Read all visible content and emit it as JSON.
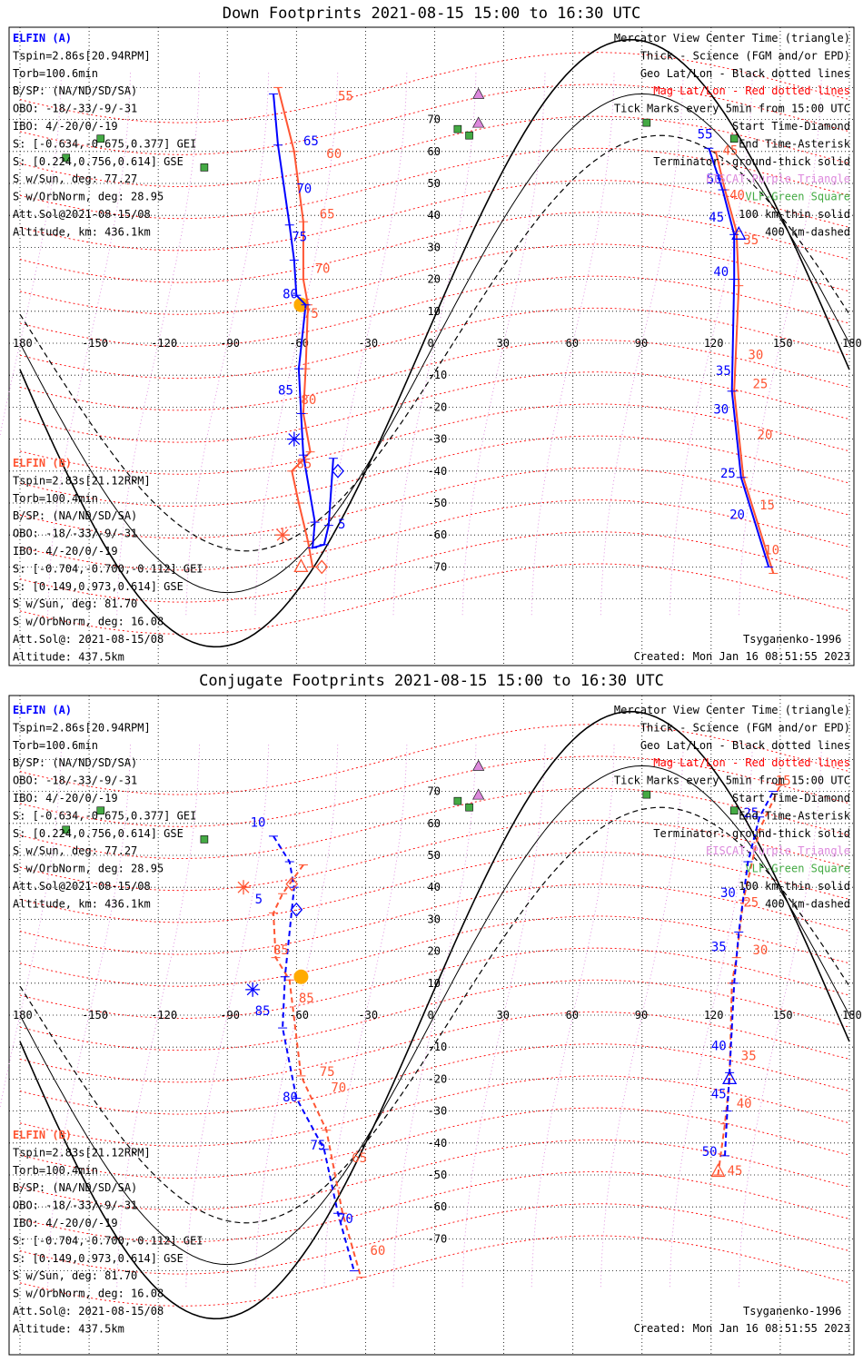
{
  "panels": [
    {
      "id": "down",
      "title": "Down Footprints 2021-08-15 15:00 to 16:30 UTC",
      "ela_mark": "+",
      "elb_mark": "+",
      "ela_track": [
        [
          -44,
          -36
        ],
        [
          -46,
          -57
        ],
        [
          -48,
          -63
        ],
        [
          -53,
          -64
        ],
        [
          -52,
          -56
        ],
        [
          -57,
          -35
        ],
        [
          -58,
          -22
        ],
        [
          -59,
          -8
        ],
        [
          -56,
          12
        ],
        [
          -60,
          15
        ],
        [
          -61,
          26
        ],
        [
          -63,
          37
        ],
        [
          -68,
          62
        ],
        [
          -70,
          78
        ]
      ],
      "elb_track": [
        [
          -53,
          -70
        ],
        [
          -55,
          -62
        ],
        [
          -59,
          -50
        ],
        [
          -62,
          -40
        ],
        [
          -54,
          -34
        ],
        [
          -57,
          -22
        ],
        [
          -56,
          -8
        ],
        [
          -55,
          12
        ],
        [
          -57,
          20
        ],
        [
          -57,
          38
        ],
        [
          -61,
          60
        ],
        [
          -68,
          80
        ]
      ],
      "ela_track2": [
        [
          145,
          -70
        ],
        [
          133,
          -42
        ],
        [
          129,
          -15
        ],
        [
          130,
          20
        ],
        [
          130,
          34
        ],
        [
          125,
          48
        ],
        [
          119,
          61
        ]
      ],
      "elb_track2": [
        [
          147,
          -72
        ],
        [
          134,
          -42
        ],
        [
          130,
          -15
        ],
        [
          132,
          18
        ],
        [
          131,
          35
        ],
        [
          126,
          48
        ],
        [
          122,
          60
        ]
      ],
      "ela_labels": [
        {
          "t": "5",
          "lon": -42,
          "lat": -58
        },
        {
          "t": "65",
          "lon": -57,
          "lat": 62
        },
        {
          "t": "70",
          "lon": -60,
          "lat": 47
        },
        {
          "t": "75",
          "lon": -62,
          "lat": 32
        },
        {
          "t": "80",
          "lon": -66,
          "lat": 14
        },
        {
          "t": "85",
          "lon": -68,
          "lat": -16
        },
        {
          "t": "55",
          "lon": 114,
          "lat": 64
        },
        {
          "t": "50",
          "lon": 118,
          "lat": 50
        },
        {
          "t": "45",
          "lon": 119,
          "lat": 38
        },
        {
          "t": "40",
          "lon": 121,
          "lat": 21
        },
        {
          "t": "35",
          "lon": 122,
          "lat": -10
        },
        {
          "t": "30",
          "lon": 121,
          "lat": -22
        },
        {
          "t": "25",
          "lon": 124,
          "lat": -42
        },
        {
          "t": "20",
          "lon": 128,
          "lat": -55
        }
      ],
      "elb_labels": [
        {
          "t": "55",
          "lon": -42,
          "lat": 76
        },
        {
          "t": "60",
          "lon": -47,
          "lat": 58
        },
        {
          "t": "65",
          "lon": -50,
          "lat": 39
        },
        {
          "t": "70",
          "lon": -52,
          "lat": 22
        },
        {
          "t": "75",
          "lon": -57,
          "lat": 8
        },
        {
          "t": "80",
          "lon": -58,
          "lat": -19
        },
        {
          "t": "85",
          "lon": -60,
          "lat": -39
        },
        {
          "t": "45",
          "lon": 125,
          "lat": 59
        },
        {
          "t": "40",
          "lon": 128,
          "lat": 45
        },
        {
          "t": "35",
          "lon": 134,
          "lat": 31
        },
        {
          "t": "30",
          "lon": 136,
          "lat": -5
        },
        {
          "t": "25",
          "lon": 138,
          "lat": -14
        },
        {
          "t": "20",
          "lon": 140,
          "lat": -30
        },
        {
          "t": "15",
          "lon": 141,
          "lat": -52
        },
        {
          "t": "10",
          "lon": 143,
          "lat": -66
        }
      ],
      "ela_start": [
        -42,
        -40
      ],
      "ela_end": [
        -61,
        -30
      ],
      "elb_start": [
        -49,
        -70
      ],
      "elb_end": [
        -66,
        -60
      ],
      "ela_center": [
        132,
        34
      ],
      "elb_center": [
        -58,
        -70
      ]
    },
    {
      "id": "conj",
      "title": "Conjugate Footprints 2021-08-15 15:00 to 16:30 UTC",
      "ela_track": [
        [
          -70,
          56
        ],
        [
          -63,
          48
        ],
        [
          -61,
          40
        ],
        [
          -65,
          12
        ],
        [
          -66,
          -4
        ],
        [
          -60,
          -26
        ],
        [
          -48,
          -42
        ],
        [
          -42,
          -62
        ],
        [
          -35,
          -80
        ]
      ],
      "elb_track": [
        [
          -57,
          47
        ],
        [
          -66,
          38
        ],
        [
          -70,
          32
        ],
        [
          -69,
          18
        ],
        [
          -63,
          11
        ],
        [
          -58,
          -19
        ],
        [
          -47,
          -36
        ],
        [
          -40,
          -62
        ],
        [
          -32,
          -82
        ]
      ],
      "ela_track2": [
        [
          126,
          -44
        ],
        [
          127,
          -30
        ],
        [
          128,
          -18
        ],
        [
          130,
          10
        ],
        [
          132,
          26
        ],
        [
          136,
          48
        ],
        [
          141,
          62
        ],
        [
          147,
          70
        ]
      ],
      "elb_track2": [
        [
          123,
          -50
        ],
        [
          126,
          -34
        ],
        [
          128,
          -20
        ],
        [
          129,
          10
        ],
        [
          131,
          18
        ],
        [
          134,
          36
        ],
        [
          141,
          58
        ],
        [
          150,
          72
        ]
      ],
      "ela_labels": [
        {
          "t": "10",
          "lon": -80,
          "lat": 59
        },
        {
          "t": "5",
          "lon": -78,
          "lat": 35
        },
        {
          "t": "85",
          "lon": -78,
          "lat": 0
        },
        {
          "t": "80",
          "lon": -66,
          "lat": -27
        },
        {
          "t": "75",
          "lon": -54,
          "lat": -42
        },
        {
          "t": "70",
          "lon": -42,
          "lat": -65
        },
        {
          "t": "25",
          "lon": 134,
          "lat": 62
        },
        {
          "t": "30",
          "lon": 124,
          "lat": 37
        },
        {
          "t": "35",
          "lon": 120,
          "lat": 20
        },
        {
          "t": "40",
          "lon": 120,
          "lat": -11
        },
        {
          "t": "45",
          "lon": 120,
          "lat": -26
        },
        {
          "t": "50",
          "lon": 116,
          "lat": -44
        }
      ],
      "elb_labels": [
        {
          "t": "85",
          "lon": -70,
          "lat": 19
        },
        {
          "t": "85",
          "lon": -59,
          "lat": 4
        },
        {
          "t": "75",
          "lon": -50,
          "lat": -19
        },
        {
          "t": "70",
          "lon": -45,
          "lat": -24
        },
        {
          "t": "65",
          "lon": -36,
          "lat": -46
        },
        {
          "t": "60",
          "lon": -28,
          "lat": -75
        },
        {
          "t": "15",
          "lon": 148,
          "lat": 72
        },
        {
          "t": "25",
          "lon": 134,
          "lat": 34
        },
        {
          "t": "30",
          "lon": 138,
          "lat": 19
        },
        {
          "t": "35",
          "lon": 133,
          "lat": -14
        },
        {
          "t": "40",
          "lon": 131,
          "lat": -29
        },
        {
          "t": "45",
          "lon": 127,
          "lat": -50
        }
      ],
      "ela_start": [
        -60,
        33
      ],
      "ela_end": [
        -79,
        8
      ],
      "elb_start": [
        -62,
        41
      ],
      "elb_end": [
        -83,
        40
      ],
      "ela_center": [
        128,
        -20
      ],
      "elb_center": [
        123,
        -49
      ]
    }
  ],
  "left_info_a": [
    "ELFIN (A)",
    "Tspin=2.86s[20.94RPM]",
    "Torb=100.6min",
    "B/SP: (NA/ND/SD/SA)",
    "OBO: -18/-33/-9/-31",
    "IBO: 4/-20/0/-19",
    "S: [-0.634,-0.675,0.377] GEI",
    "S: [0.224,0.756,0.614] GSE",
    "S w/Sun, deg: 77.27",
    "S w/OrbNorm, deg: 28.95",
    "Att.Sol@2021-08-15/08",
    "Altitude, km: 436.1km"
  ],
  "left_info_b": [
    "ELFIN (B)",
    "Tspin=2.83s[21.12RPM]",
    "Torb=100.4min",
    "B/SP: (NA/ND/SD/SA)",
    "OBO: -18/-33/-9/-31",
    "IBO: 4/-20/0/-19",
    "S: [-0.704,-0.700,-0.112] GEI",
    "S: [0.149,0.973,0.614] GSE",
    "S w/Sun, deg: 81.70",
    "S w/OrbNorm, deg: 16.08",
    "Att.Sol@: 2021-08-15/08",
    "Altitude: 437.5km"
  ],
  "legend": [
    {
      "t": "Mercator View Center Time (triangle)",
      "c": "#000000"
    },
    {
      "t": "Thick - Science (FGM and/or EPD)",
      "c": "#000000"
    },
    {
      "t": "Geo Lat/Lon - Black dotted lines",
      "c": "#000000"
    },
    {
      "t": "Mag Lat/Lon - Red dotted lines",
      "c": "#ff0000"
    },
    {
      "t": "Tick Marks every 5min from 15:00 UTC",
      "c": "#000000"
    },
    {
      "t": "Start Time-Diamond",
      "c": "#000000"
    },
    {
      "t": "End Time-Asterisk",
      "c": "#000000"
    },
    {
      "t": "Terminator: ground-thick solid",
      "c": "#000000"
    },
    {
      "t": "EISCAT-Purple Triangle",
      "c": "#dd88dd"
    },
    {
      "t": "VLF-Green Square",
      "c": "#44aa44"
    },
    {
      "t": "100 km-thin solid",
      "c": "#000000"
    },
    {
      "t": "400 km-dashed",
      "c": "#000000"
    }
  ],
  "footer_left": "Tsyganenko-1996",
  "footer_created": "Created: Mon Jan 16 08:51:55 2023",
  "lon_ticks": [
    "180",
    "-150",
    "-120",
    "-90",
    "-60",
    "-30",
    "0",
    "30",
    "60",
    "90",
    "120",
    "150",
    "180"
  ],
  "lat_ticks": [
    "70",
    "60",
    "50",
    "40",
    "30",
    "20",
    "10",
    "-10",
    "-20",
    "-30",
    "-40",
    "-50",
    "-60",
    "-70"
  ],
  "eiscat": [
    [
      19,
      78
    ],
    [
      19,
      69
    ]
  ],
  "vlf": [
    [
      -145,
      64
    ],
    [
      -160,
      58
    ],
    [
      -100,
      55
    ],
    [
      10,
      67
    ],
    [
      15,
      65
    ],
    [
      92,
      69
    ],
    [
      130,
      64
    ]
  ],
  "sun": [
    -58,
    12
  ],
  "colors": {
    "ela": "#0000ff",
    "elb": "#ff5533",
    "eiscat": "#dd88dd",
    "vlf": "#44aa44",
    "mag": "#ff0000",
    "geo": "#dd88dd",
    "sun": "#ffaa00"
  }
}
